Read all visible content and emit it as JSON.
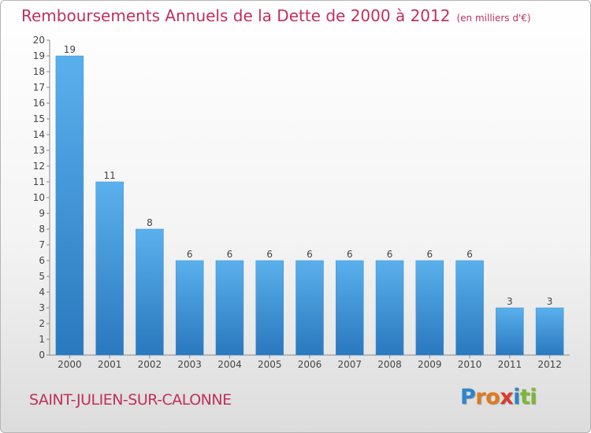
{
  "header": {
    "title": "Remboursements Annuels de la Dette de 2000 à 2012",
    "subtitle": "(en milliers d'€)"
  },
  "footer": {
    "city": "SAINT-JULIEN-SUR-CALONNE",
    "logo_letters": [
      {
        "char": "P",
        "color": "#2c84cc"
      },
      {
        "char": "r",
        "color": "#e07a1c"
      },
      {
        "char": "o",
        "color": "#e07a1c"
      },
      {
        "char": "x",
        "color": "#d83a2c"
      },
      {
        "char": "i",
        "color": "#2c84cc"
      },
      {
        "char": "t",
        "color": "#7cb82f"
      },
      {
        "char": "i",
        "color": "#7cb82f"
      }
    ]
  },
  "chart_data": {
    "type": "bar",
    "categories": [
      "2000",
      "2001",
      "2002",
      "2003",
      "2004",
      "2005",
      "2006",
      "2007",
      "2008",
      "2009",
      "2010",
      "2011",
      "2012"
    ],
    "values": [
      19,
      11,
      8,
      6,
      6,
      6,
      6,
      6,
      6,
      6,
      6,
      3,
      3
    ],
    "data_labels": [
      "19",
      "11",
      "8",
      "6",
      "6",
      "6",
      "6",
      "6",
      "6",
      "6",
      "6",
      "3",
      "3"
    ],
    "title": "Remboursements Annuels de la Dette de 2000 à 2012",
    "xlabel": "",
    "ylabel": "",
    "ylim": [
      0,
      20
    ],
    "yticks": [
      0,
      1,
      2,
      3,
      4,
      5,
      6,
      7,
      8,
      9,
      10,
      11,
      12,
      13,
      14,
      15,
      16,
      17,
      18,
      19,
      20
    ],
    "grid": false,
    "bar_color": "#4a9ede",
    "bar_color_dark": "#2a78be"
  }
}
